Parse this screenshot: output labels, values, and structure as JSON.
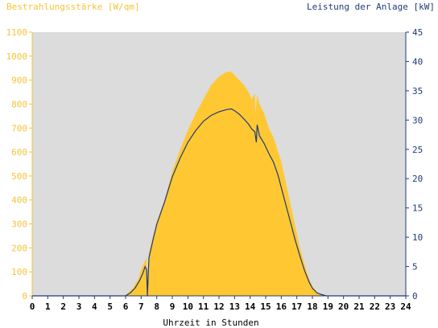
{
  "chart_data": {
    "type": "area",
    "left_axis_title": "Bestrahlungsstärke [W/qm]",
    "right_axis_title": "Leistung der Anlage [kW]",
    "xlabel": "Uhrzeit in Stunden",
    "x_ticks": [
      "0",
      "1",
      "2",
      "3",
      "4",
      "5",
      "6",
      "7",
      "8",
      "9",
      "10",
      "11",
      "12",
      "13",
      "14",
      "15",
      "16",
      "17",
      "18",
      "19",
      "20",
      "21",
      "22",
      "23",
      "24"
    ],
    "y_left_ticks": [
      "0",
      "100",
      "200",
      "300",
      "400",
      "500",
      "600",
      "700",
      "800",
      "900",
      "1000",
      "1100"
    ],
    "y_right_ticks": [
      "0",
      "5",
      "10",
      "15",
      "20",
      "25",
      "30",
      "35",
      "40",
      "45"
    ],
    "xlim": [
      0,
      24
    ],
    "ylim_left": [
      0,
      1100
    ],
    "ylim_right": [
      0,
      45
    ],
    "grid": false,
    "colors": {
      "plot_background": "#dcdcdc",
      "irradiance_fill": "#ffc832",
      "power_line": "#1f3a7a",
      "left_axis_text": "#f5c43a",
      "right_axis_text": "#1f3a7a"
    },
    "series": [
      {
        "name": "Bestrahlungsstärke [W/qm]",
        "axis": "left",
        "style": "filled-area",
        "x": [
          0,
          5.9,
          6.2,
          6.5,
          6.8,
          7.0,
          7.2,
          7.35,
          7.4,
          7.5,
          7.8,
          8.0,
          8.5,
          9.0,
          9.5,
          10.0,
          10.5,
          11.0,
          11.5,
          12.0,
          12.5,
          12.8,
          13.0,
          13.3,
          13.6,
          13.9,
          14.1,
          14.3,
          14.35,
          14.45,
          14.6,
          14.9,
          15.2,
          15.5,
          15.8,
          16.0,
          16.3,
          16.6,
          16.9,
          17.2,
          17.5,
          17.8,
          18.0,
          18.3,
          18.6,
          18.9,
          19.0,
          24
        ],
        "y": [
          0,
          0,
          15,
          35,
          70,
          110,
          140,
          160,
          0,
          180,
          260,
          310,
          400,
          520,
          610,
          690,
          760,
          820,
          880,
          915,
          935,
          935,
          920,
          900,
          880,
          850,
          820,
          845,
          760,
          840,
          800,
          760,
          700,
          660,
          600,
          560,
          470,
          380,
          290,
          200,
          130,
          70,
          40,
          15,
          5,
          0,
          0,
          0
        ]
      },
      {
        "name": "Leistung der Anlage [kW]",
        "axis": "right",
        "style": "line",
        "x": [
          0,
          6.0,
          6.3,
          6.6,
          6.9,
          7.1,
          7.25,
          7.35,
          7.4,
          7.5,
          7.8,
          8.0,
          8.5,
          9.0,
          9.5,
          10.0,
          10.5,
          11.0,
          11.5,
          12.0,
          12.5,
          12.8,
          13.0,
          13.3,
          13.6,
          13.9,
          14.1,
          14.3,
          14.4,
          14.45,
          14.6,
          14.9,
          15.2,
          15.5,
          15.8,
          16.0,
          16.3,
          16.6,
          16.9,
          17.2,
          17.5,
          17.8,
          18.0,
          18.3,
          18.6,
          18.9,
          19.0,
          24
        ],
        "y": [
          0,
          0,
          0.5,
          1.3,
          2.6,
          3.8,
          5.0,
          4.5,
          0,
          6.5,
          10.0,
          12.2,
          16.0,
          20.3,
          23.5,
          26.2,
          28.2,
          29.8,
          30.8,
          31.4,
          31.8,
          31.9,
          31.6,
          31.0,
          30.2,
          29.3,
          28.5,
          28.0,
          26.2,
          29.2,
          27.3,
          26.0,
          24.3,
          22.8,
          20.5,
          18.5,
          15.5,
          12.5,
          9.5,
          6.8,
          4.3,
          2.3,
          1.3,
          0.5,
          0.2,
          0,
          0,
          0
        ]
      }
    ]
  }
}
